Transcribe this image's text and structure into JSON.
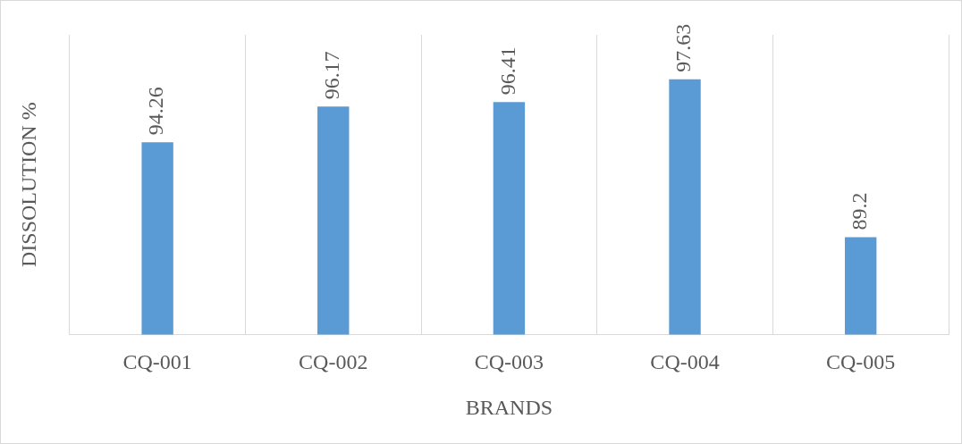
{
  "chart_data": {
    "type": "bar",
    "xlabel": "BRANDS",
    "ylabel": "DISSOLUTION %",
    "categories": [
      "CQ-001",
      "CQ-002",
      "CQ-003",
      "CQ-004",
      "CQ-005"
    ],
    "values": [
      94.26,
      96.17,
      96.41,
      97.63,
      89.2
    ],
    "color": "#5b9bd5",
    "ylim": [
      84,
      100
    ],
    "tick_labels": "x",
    "grid": "x",
    "data_labels": true
  }
}
